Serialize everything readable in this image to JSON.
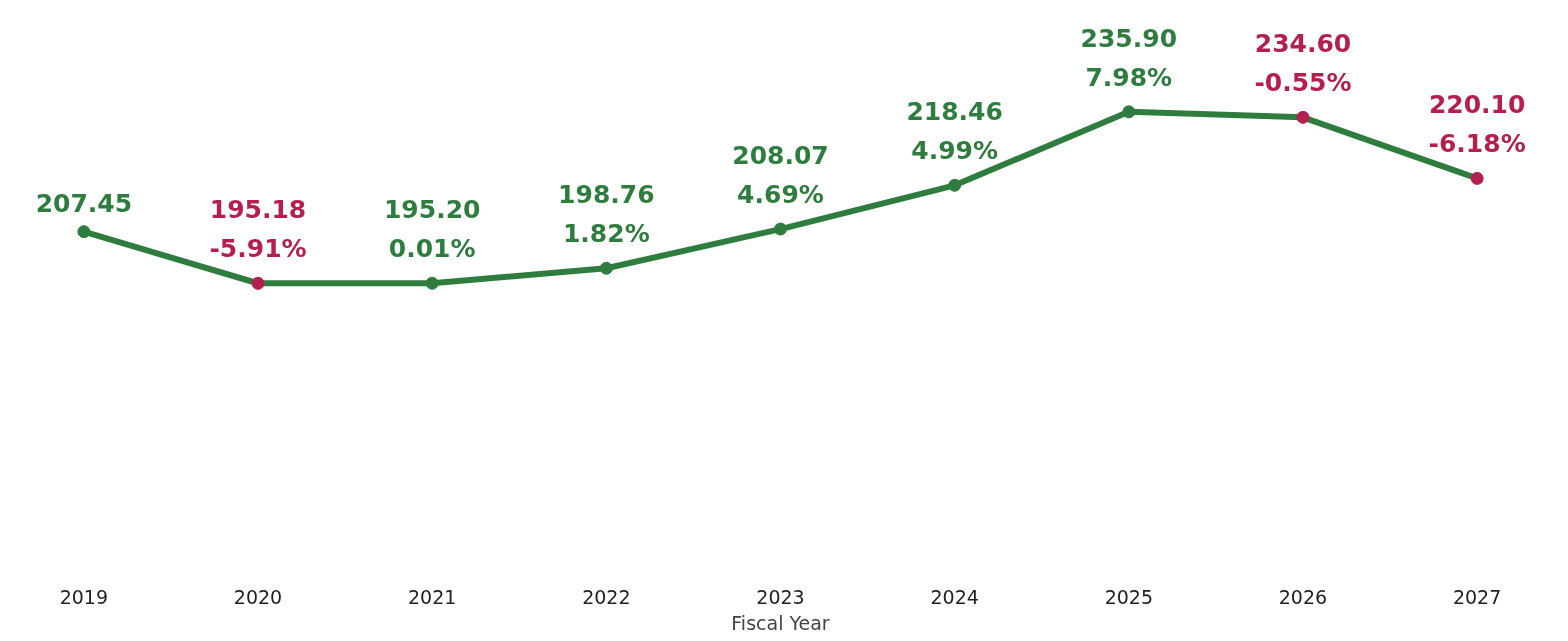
{
  "chart_data": {
    "type": "line",
    "xlabel": "Fiscal Year",
    "categories": [
      "2019",
      "2020",
      "2021",
      "2022",
      "2023",
      "2024",
      "2025",
      "2026",
      "2027"
    ],
    "series": [
      {
        "color": "#2e7d3e",
        "values": [
          207.45,
          195.18,
          195.2,
          198.76,
          208.07,
          218.46,
          235.9,
          234.6,
          220.1
        ],
        "colors": [
          "#2e7d3e",
          "#b51f4e",
          "#2e7d3e",
          "#2e7d3e",
          "#2e7d3e",
          "#2e7d3e",
          "#2e7d3e",
          "#b51f4e",
          "#b51f4e"
        ],
        "value_labels": [
          "207.45",
          "195.18\n-5.91%",
          "195.20\n0.01%",
          "198.76\n1.82%",
          "208.07\n4.69%",
          "218.46\n4.99%",
          "235.90\n7.98%",
          "234.60\n-0.55%",
          "220.10\n-6.18%"
        ]
      }
    ],
    "marker": "circle",
    "line_style": "solid",
    "grid": false
  }
}
